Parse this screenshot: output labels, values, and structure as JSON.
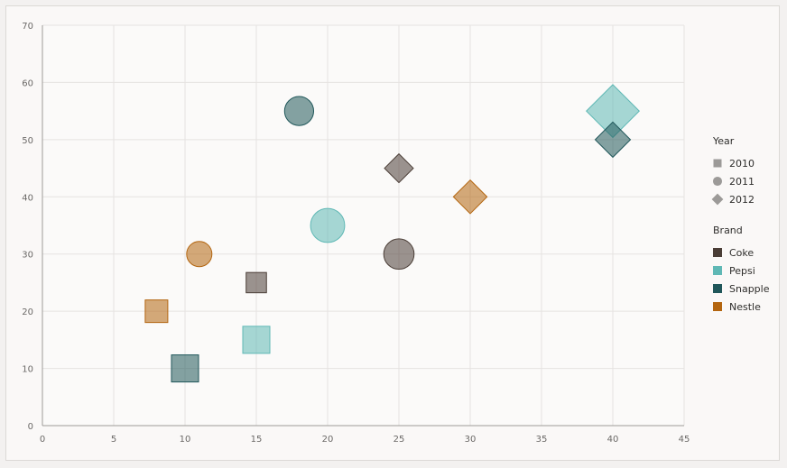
{
  "chart_data": {
    "type": "scatter",
    "x_ticks": [
      "0",
      "5",
      "10",
      "15",
      "20",
      "25",
      "30",
      "35",
      "40",
      "45"
    ],
    "y_ticks": [
      "0",
      "10",
      "20",
      "30",
      "40",
      "50",
      "60",
      "70"
    ],
    "xlim": [
      0,
      45
    ],
    "ylim": [
      0,
      70
    ],
    "grid": true,
    "legend_position": "right",
    "brands": [
      {
        "name": "Coke",
        "color": "#4a3d36"
      },
      {
        "name": "Pepsi",
        "color": "#5fb8b5"
      },
      {
        "name": "Snapple",
        "color": "#20575a"
      },
      {
        "name": "Nestle",
        "color": "#b3650f"
      }
    ],
    "years": [
      {
        "name": "2010",
        "shape": "square"
      },
      {
        "name": "2011",
        "shape": "circle"
      },
      {
        "name": "2012",
        "shape": "diamond"
      }
    ],
    "points": [
      {
        "brand": "Nestle",
        "year": "2010",
        "x": 8,
        "y": 20,
        "size": 1
      },
      {
        "brand": "Snapple",
        "year": "2010",
        "x": 10,
        "y": 10,
        "size": 1.2
      },
      {
        "brand": "Coke",
        "year": "2010",
        "x": 15,
        "y": 25,
        "size": 0.9
      },
      {
        "brand": "Pepsi",
        "year": "2010",
        "x": 15,
        "y": 15,
        "size": 1.2
      },
      {
        "brand": "Nestle",
        "year": "2011",
        "x": 11,
        "y": 30,
        "size": 1
      },
      {
        "brand": "Snapple",
        "year": "2011",
        "x": 18,
        "y": 55,
        "size": 1.15
      },
      {
        "brand": "Pepsi",
        "year": "2011",
        "x": 20,
        "y": 35,
        "size": 1.35
      },
      {
        "brand": "Coke",
        "year": "2011",
        "x": 25,
        "y": 30,
        "size": 1.2
      },
      {
        "brand": "Coke",
        "year": "2012",
        "x": 25,
        "y": 45,
        "size": 0.9
      },
      {
        "brand": "Nestle",
        "year": "2012",
        "x": 30,
        "y": 40,
        "size": 1.05
      },
      {
        "brand": "Pepsi",
        "year": "2012",
        "x": 40,
        "y": 55,
        "size": 1.65
      },
      {
        "brand": "Snapple",
        "year": "2012",
        "x": 40,
        "y": 50,
        "size": 1.1
      }
    ]
  },
  "legend": {
    "year_title": "Year",
    "brand_title": "Brand"
  }
}
